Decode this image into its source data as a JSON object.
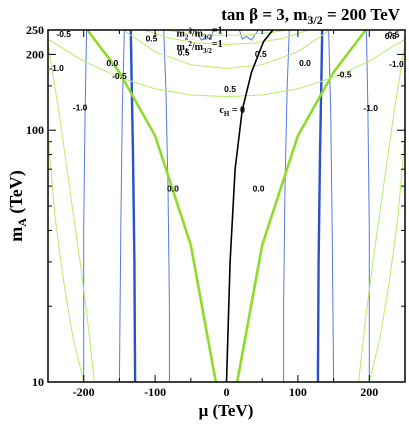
{
  "chart_data": {
    "type": "line",
    "title": "tan β = 3, m",
    "title_sub": "3/2",
    "title_tail": " = 200 TeV",
    "xlabel": "μ  (TeV)",
    "ylabel_main": "m",
    "ylabel_sub": "A",
    "ylabel_tail": " (TeV)",
    "xlim": [
      -250,
      250
    ],
    "ylim": [
      10,
      250
    ],
    "y_scale": "log",
    "x_ticks": [
      "-200",
      "-100",
      "0",
      "100",
      "200"
    ],
    "y_ticks": [
      "10",
      "100",
      "200",
      "250"
    ],
    "colors": {
      "thin_blue": "#5a78e0",
      "thick_blue": "#2a4fd0",
      "thin_green": "#b8ec6a",
      "thick_green": "#8edc2a",
      "black": "#000000"
    },
    "series": [
      {
        "style": "thick_blue",
        "x": [
          -128,
          -129,
          -131,
          -133,
          -134
        ],
        "y": [
          10,
          30,
          80,
          170,
          250
        ]
      },
      {
        "style": "thick_blue",
        "x": [
          128,
          129,
          131,
          133,
          134
        ],
        "y": [
          10,
          30,
          80,
          170,
          250
        ]
      },
      {
        "style": "thin_blue",
        "x": [
          -200,
          -200,
          -198,
          -196
        ],
        "y": [
          10,
          40,
          120,
          250
        ]
      },
      {
        "style": "thin_blue",
        "x": [
          -150,
          -148,
          -146,
          -143
        ],
        "y": [
          10,
          40,
          120,
          250
        ]
      },
      {
        "style": "thin_blue",
        "x": [
          -80,
          -80,
          -82,
          -85,
          -88
        ],
        "y": [
          10,
          20,
          60,
          150,
          250
        ]
      },
      {
        "style": "thin_blue",
        "x": [
          80,
          80,
          82,
          85,
          88
        ],
        "y": [
          10,
          20,
          60,
          150,
          250
        ]
      },
      {
        "style": "thin_blue",
        "x": [
          150,
          148,
          146,
          143
        ],
        "y": [
          10,
          40,
          120,
          250
        ]
      },
      {
        "style": "thin_blue",
        "x": [
          200,
          200,
          198,
          196
        ],
        "y": [
          10,
          40,
          120,
          250
        ]
      },
      {
        "style": "thin_blue",
        "x": [
          -45,
          -40,
          -35,
          -28,
          -22,
          -18
        ],
        "y": [
          250,
          240,
          228,
          236,
          230,
          250
        ]
      },
      {
        "style": "thin_blue",
        "x": [
          18,
          22,
          28,
          35,
          40,
          45
        ],
        "y": [
          250,
          230,
          236,
          228,
          240,
          250
        ]
      },
      {
        "style": "thick_green",
        "x": [
          -195,
          -150,
          -100,
          -50,
          -15
        ],
        "y": [
          250,
          170,
          95,
          35,
          10
        ]
      },
      {
        "style": "thick_green",
        "x": [
          15,
          50,
          100,
          150,
          195
        ],
        "y": [
          10,
          35,
          95,
          170,
          250
        ]
      },
      {
        "style": "thin_green",
        "x": [
          -250,
          -235,
          -220,
          -205,
          -195,
          -185
        ],
        "y": [
          220,
          120,
          60,
          30,
          18,
          10
        ]
      },
      {
        "style": "thin_green",
        "x": [
          185,
          195,
          205,
          220,
          235,
          250
        ],
        "y": [
          10,
          18,
          30,
          60,
          120,
          220
        ]
      },
      {
        "style": "thin_green",
        "x": [
          -250,
          -240,
          -228,
          -215,
          -200
        ],
        "y": [
          95,
          45,
          25,
          15,
          10
        ]
      },
      {
        "style": "thin_green",
        "x": [
          200,
          215,
          228,
          240,
          250
        ],
        "y": [
          10,
          15,
          25,
          45,
          95
        ]
      },
      {
        "style": "thin_green",
        "x": [
          -145,
          -100,
          -50,
          0,
          50,
          100,
          145
        ],
        "y": [
          250,
          205,
          182,
          176,
          182,
          205,
          250
        ]
      },
      {
        "style": "thin_green",
        "x": [
          -115,
          -80,
          -40,
          0,
          40,
          80,
          115
        ],
        "y": [
          250,
          232,
          222,
          219,
          222,
          232,
          250
        ]
      },
      {
        "style": "thin_green",
        "x": [
          -85,
          -60,
          -30,
          0,
          30,
          60,
          85
        ],
        "y": [
          250,
          244,
          239,
          238,
          239,
          244,
          250
        ]
      },
      {
        "style": "thin_green",
        "x": [
          -250,
          -200,
          -150,
          -100,
          -50,
          0,
          50,
          100,
          150,
          200,
          250
        ],
        "y": [
          230,
          188,
          162,
          146,
          138,
          136,
          138,
          146,
          162,
          188,
          230
        ]
      },
      {
        "style": "black",
        "x": [
          0,
          5,
          12,
          22,
          35,
          52,
          65
        ],
        "y": [
          10,
          30,
          70,
          120,
          170,
          225,
          250
        ]
      }
    ],
    "annotations": [
      {
        "text": "-0.5",
        "x": -228,
        "y": 235
      },
      {
        "text": "0.5",
        "x": -105,
        "y": 225
      },
      {
        "text": "0.5",
        "x": 230,
        "y": 230
      },
      {
        "text": "-0.5",
        "x": 232,
        "y": 233
      },
      {
        "text": "0.5",
        "x": -60,
        "y": 198
      },
      {
        "text": "0.5",
        "x": 48,
        "y": 195
      },
      {
        "text": "0.0",
        "x": -160,
        "y": 180
      },
      {
        "text": "0.0",
        "x": 110,
        "y": 180
      },
      {
        "text": "-1.0",
        "x": -238,
        "y": 172
      },
      {
        "text": "-1.0",
        "x": 238,
        "y": 178
      },
      {
        "text": "-0.5",
        "x": -150,
        "y": 160
      },
      {
        "text": "-0.5",
        "x": 165,
        "y": 162
      },
      {
        "text": "0.5",
        "x": 5,
        "y": 142
      },
      {
        "text": "-1.0",
        "x": -205,
        "y": 120
      },
      {
        "text": "-1.0",
        "x": 202,
        "y": 119
      },
      {
        "text": "0.0",
        "x": -75,
        "y": 57
      },
      {
        "text": "0.0",
        "x": 45,
        "y": 57
      }
    ],
    "curve_labels": [
      {
        "main": "m",
        "sub1": "2",
        "mid": "2",
        "sep": "/m",
        "sub2": "3/2",
        "end": "=1",
        "x": -70,
        "y": 236
      },
      {
        "main": "m",
        "sub1": "1",
        "mid": "2",
        "sep": "/m",
        "sub2": "3/2",
        "end": "=1",
        "x": -70,
        "y": 208
      },
      {
        "main": "c",
        "sub1": "H",
        "end": " = 0",
        "x": -10,
        "y": 117
      }
    ]
  }
}
